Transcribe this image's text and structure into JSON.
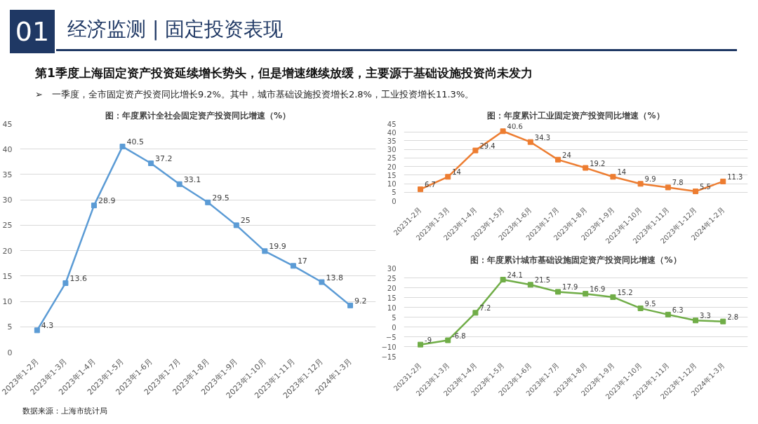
{
  "chart_data": [
    {
      "type": "line",
      "title": "图：年度累计全社会固定资产投资同比增速（%）",
      "annotations": [
        "01",
        "经济监测 | 固定投资表现",
        "第1季度上海固定资产投资延续增长势头，但是增速继续放缓，主要源于基础设施投资尚未发力",
        "➢　一季度，全市固定资产投资同比增长9.2%。其中，城市基础设施投资增长2.8%，工业投资增长11.3%。",
        "数据来源：上海市统计局"
      ],
      "categories": [
        "2023年1-2月",
        "2023年1-3月",
        "2023年1-4月",
        "2023年1-5月",
        "2023年1-6月",
        "2023年1-7月",
        "2023年1-8月",
        "2023年1-9月",
        "2023年1-10月",
        "2023年1-11月",
        "2023年1-12月",
        "2024年1-3月"
      ],
      "series": [
        {
          "color": "#5b9bd5",
          "values": [
            4.3,
            13.6,
            28.9,
            40.5,
            37.2,
            33.1,
            29.5,
            25,
            19.9,
            17,
            13.8,
            9.2
          ]
        }
      ],
      "ylim": [
        0,
        45
      ],
      "yticks": [
        0,
        5,
        10,
        15,
        20,
        25,
        30,
        35,
        40,
        45
      ],
      "grid": "y",
      "marker": "square",
      "data_labels": true
    },
    {
      "type": "line",
      "title": "图：年度累计工业固定资产投资同比增速（%）",
      "categories": [
        "20231-2月",
        "2023年1-3月",
        "2023年1-4月",
        "2023年1-5月",
        "2023年1-6月",
        "2023年1-7月",
        "2023年1-8月",
        "2023年1-9月",
        "2023年1-10月",
        "2023年1-11月",
        "2023年1-12月",
        "2024年1-2月"
      ],
      "series": [
        {
          "color": "#ed7d31",
          "values": [
            6.7,
            14,
            29.4,
            40.6,
            34.3,
            24,
            19.2,
            14,
            9.9,
            7.8,
            5.5,
            11.3
          ]
        }
      ],
      "ylim": [
        0,
        45
      ],
      "yticks": [
        0,
        5,
        10,
        15,
        20,
        25,
        30,
        35,
        40,
        45
      ],
      "grid": "y",
      "marker": "square",
      "data_labels": true
    },
    {
      "type": "line",
      "title": "图：年度累计城市基础设施固定资产投资同比增速（%）",
      "categories": [
        "20231-2月",
        "2023年1-3月",
        "2023年1-4月",
        "2023年1-5月",
        "2023年1-6月",
        "2023年1-7月",
        "2023年1-8月",
        "2023年1-9月",
        "2023年1-10月",
        "2023年1-11月",
        "2023年1-12月",
        "2024年1-3月"
      ],
      "series": [
        {
          "color": "#70ad47",
          "values": [
            -9,
            -6.8,
            7.2,
            24.1,
            21.5,
            17.9,
            16.9,
            15.2,
            9.5,
            6.3,
            3.3,
            2.8
          ]
        }
      ],
      "ylim": [
        -15,
        30
      ],
      "yticks": [
        -15,
        -10,
        -5,
        0,
        5,
        10,
        15,
        20,
        25,
        30
      ],
      "grid": "y",
      "marker": "square",
      "data_labels": true
    }
  ]
}
